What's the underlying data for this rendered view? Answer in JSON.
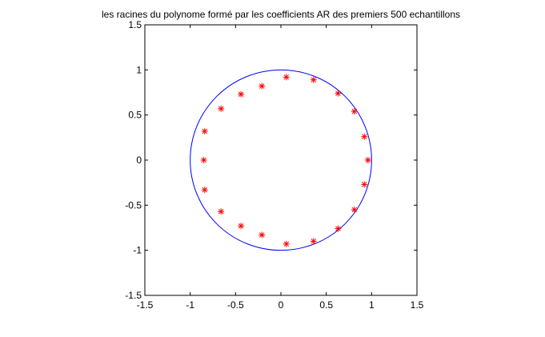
{
  "chart_data": {
    "type": "scatter",
    "title": "les racines du polynome formé par les coefficients AR des premiers 500 echantillons",
    "xlabel": "",
    "ylabel": "",
    "xlim": [
      -1.5,
      1.5
    ],
    "ylim": [
      -1.5,
      1.5
    ],
    "x_ticks": [
      "-1.5",
      "-1",
      "-0.5",
      "0",
      "0.5",
      "1",
      "1.5"
    ],
    "y_ticks": [
      "1.5",
      "1",
      "0.5",
      "0",
      "-0.5",
      "-1",
      "-1.5"
    ],
    "grid": false,
    "unit_circle": {
      "center": [
        0,
        0
      ],
      "radius": 1,
      "color": "#0000ff"
    },
    "marker": "*",
    "marker_color": "#ff0000",
    "series": [
      {
        "x": [
          0.06,
          0.36,
          0.63,
          0.81,
          0.92,
          0.96,
          0.92,
          0.81,
          0.63,
          0.36,
          0.06,
          -0.21,
          -0.44,
          -0.66,
          -0.84,
          -0.85,
          -0.84,
          -0.66,
          -0.44,
          -0.21
        ],
        "y": [
          0.92,
          0.89,
          0.74,
          0.54,
          0.26,
          0.0,
          -0.27,
          -0.55,
          -0.76,
          -0.9,
          -0.93,
          -0.83,
          -0.73,
          -0.57,
          -0.33,
          0.0,
          0.32,
          0.57,
          0.73,
          0.82
        ]
      }
    ]
  }
}
